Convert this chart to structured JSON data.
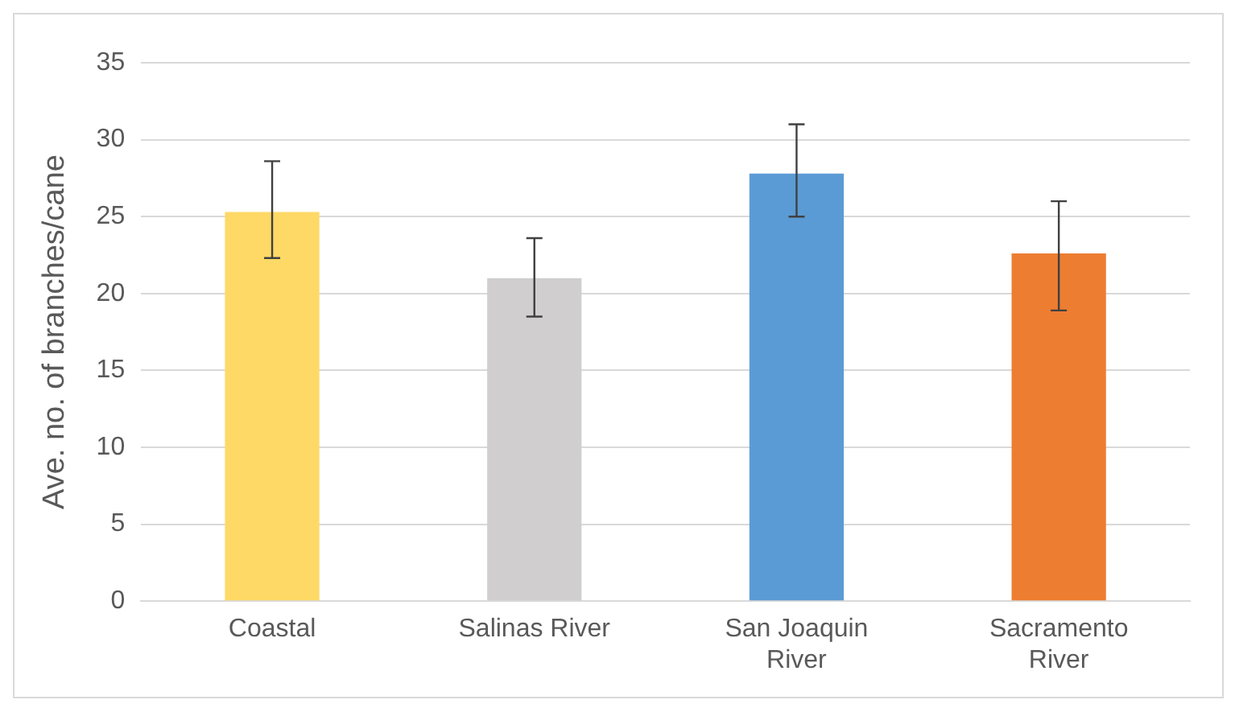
{
  "chart_data": {
    "type": "bar",
    "ylabel": "Ave. no. of branches/cane",
    "categories": [
      "Coastal",
      "Salinas River",
      "San Joaquin River",
      "Sacramento River"
    ],
    "values": [
      25.3,
      21.0,
      27.8,
      22.6
    ],
    "colors": [
      "#ffd966",
      "#d0cece",
      "#5b9bd5",
      "#ed7d31"
    ],
    "errors": [
      [
        22.3,
        28.6
      ],
      [
        18.5,
        23.6
      ],
      [
        25.0,
        31.0
      ],
      [
        18.9,
        26.0
      ]
    ],
    "ylim": [
      0,
      35
    ],
    "yticks": [
      0,
      5,
      10,
      15,
      20,
      25,
      30,
      35
    ],
    "grid": "y",
    "legend": false
  }
}
